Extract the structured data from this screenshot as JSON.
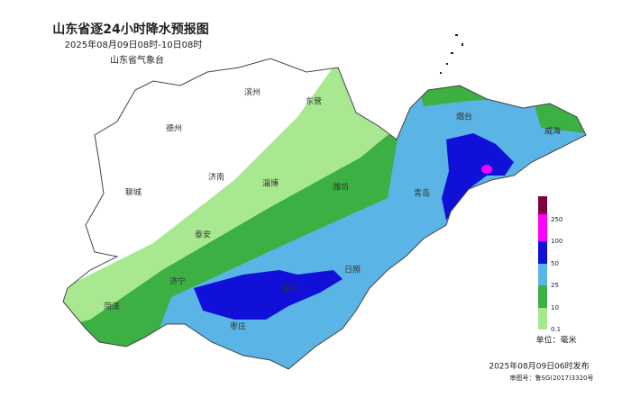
{
  "header": {
    "title": "山东省逐24小时降水预报图",
    "time_range": "2025年08月09日08时-10日08时",
    "issuer": "山东省气象台"
  },
  "cities": [
    "德州",
    "滨州",
    "东营",
    "烟台",
    "威海",
    "聊城",
    "济南",
    "淄博",
    "潍坊",
    "青岛",
    "泰安",
    "日照",
    "济宁",
    "菏泽",
    "临沂",
    "枣庄"
  ],
  "legend": {
    "ticks": [
      "250",
      "100",
      "50",
      "25",
      "10",
      "0.1"
    ],
    "unit": "单位：毫米"
  },
  "footer": {
    "issued": "2025年08月09日06时发布",
    "map_number": "审图号：鲁SG(2017)3320号"
  }
}
